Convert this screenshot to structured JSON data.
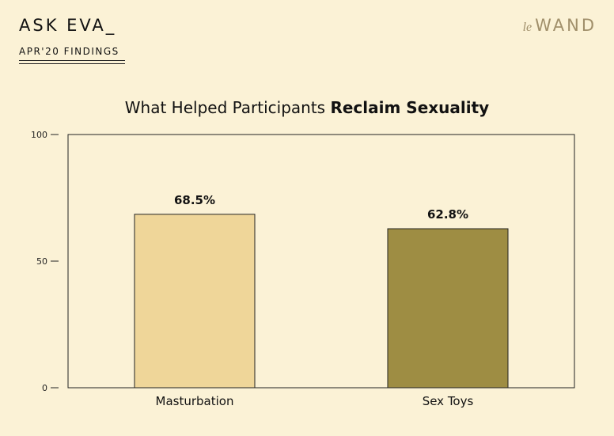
{
  "header": {
    "brand": "ASK EVA_",
    "subtitle": "APR'20 FINDINGS",
    "logo_prefix": "le",
    "logo_name": "WAND"
  },
  "chart_title": {
    "regular": "What Helped Participants ",
    "bold": "Reclaim Sexuality"
  },
  "chart_data": {
    "type": "bar",
    "title": "What Helped Participants Reclaim Sexuality",
    "categories": [
      "Masturbation",
      "Sex Toys"
    ],
    "values": [
      68.5,
      62.8
    ],
    "value_labels": [
      "68.5%",
      "62.8%"
    ],
    "colors": [
      "#efd699",
      "#9e8d43"
    ],
    "ylim": [
      0,
      100
    ],
    "yticks": [
      0,
      50,
      100
    ],
    "ytick_labels": [
      "0",
      "50",
      "100"
    ],
    "xlabel": "",
    "ylabel": "",
    "grid": false
  }
}
